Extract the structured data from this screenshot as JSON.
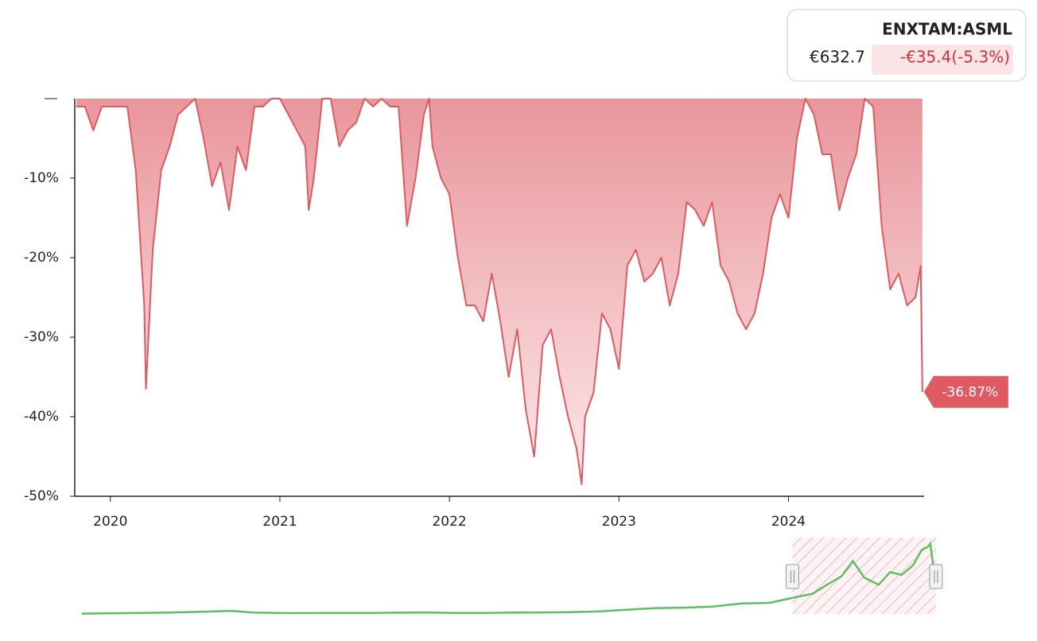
{
  "chart_data": {
    "type": "area",
    "legend": {
      "title": "ENXTAM:ASML",
      "price": "€632.7",
      "change": "-€35.4(-5.3%)"
    },
    "x": [
      2019.8,
      2019.85,
      2019.9,
      2019.95,
      2020.0,
      2020.05,
      2020.1,
      2020.15,
      2020.2,
      2020.21,
      2020.25,
      2020.3,
      2020.35,
      2020.4,
      2020.45,
      2020.5,
      2020.55,
      2020.6,
      2020.65,
      2020.7,
      2020.75,
      2020.8,
      2020.85,
      2020.9,
      2020.95,
      2021.0,
      2021.05,
      2021.1,
      2021.15,
      2021.17,
      2021.2,
      2021.25,
      2021.3,
      2021.35,
      2021.4,
      2021.45,
      2021.5,
      2021.55,
      2021.6,
      2021.65,
      2021.7,
      2021.75,
      2021.8,
      2021.85,
      2021.88,
      2021.9,
      2021.95,
      2022.0,
      2022.05,
      2022.1,
      2022.15,
      2022.2,
      2022.25,
      2022.3,
      2022.35,
      2022.4,
      2022.45,
      2022.5,
      2022.55,
      2022.6,
      2022.65,
      2022.7,
      2022.75,
      2022.78,
      2022.8,
      2022.85,
      2022.9,
      2022.95,
      2023.0,
      2023.05,
      2023.1,
      2023.15,
      2023.2,
      2023.25,
      2023.3,
      2023.35,
      2023.4,
      2023.45,
      2023.5,
      2023.55,
      2023.6,
      2023.65,
      2023.7,
      2023.75,
      2023.8,
      2023.85,
      2023.9,
      2023.95,
      2024.0,
      2024.05,
      2024.1,
      2024.15,
      2024.2,
      2024.25,
      2024.3,
      2024.35,
      2024.4,
      2024.45,
      2024.5,
      2024.55,
      2024.6,
      2024.65,
      2024.7,
      2024.75,
      2024.78,
      2024.79
    ],
    "series": [
      {
        "color": "#e05a62",
        "values": [
          -1,
          -1,
          -4,
          -1,
          -1,
          -1,
          -1,
          -9,
          -26,
          -36.5,
          -19,
          -9,
          -6,
          -2,
          -1,
          0,
          -5,
          -11,
          -8,
          -14,
          -6,
          -9,
          -1,
          -1,
          0,
          0,
          -2,
          -4,
          -6,
          -14,
          -10,
          0,
          0,
          -6,
          -4,
          -3,
          0,
          -1,
          0,
          -1,
          -1,
          -16,
          -10,
          -2,
          0,
          -6,
          -10,
          -12,
          -20,
          -26,
          -26,
          -28,
          -22,
          -28,
          -35,
          -29,
          -39,
          -45,
          -31,
          -29,
          -35,
          -40,
          -44,
          -48.5,
          -40,
          -37,
          -27,
          -29,
          -34,
          -21,
          -19,
          -23,
          -22,
          -20,
          -26,
          -22,
          -13,
          -14,
          -16,
          -13,
          -21,
          -23,
          -27,
          -29,
          -27,
          -22,
          -15,
          -12,
          -15,
          -5,
          0,
          -2,
          -7,
          -7,
          -14,
          -10,
          -7,
          0,
          -1,
          -16,
          -24,
          -22,
          -26,
          -25,
          -21,
          -36.87
        ],
        "value_labels": [
          null,
          null,
          null,
          null,
          null,
          null,
          null,
          null,
          null,
          null,
          null,
          null,
          null,
          null,
          null,
          null,
          null,
          null,
          null,
          null,
          null,
          null,
          null,
          null,
          null,
          null,
          null,
          null,
          null,
          null,
          null,
          null,
          null,
          null,
          null,
          null,
          null,
          null,
          null,
          null,
          null,
          null,
          null,
          null,
          null,
          null,
          null,
          null,
          null,
          null,
          null,
          null,
          null,
          null,
          null,
          null,
          null,
          null,
          null,
          null,
          null,
          null,
          null,
          null,
          null,
          null,
          null,
          null,
          null,
          null,
          null,
          null,
          null,
          null,
          null,
          null,
          null,
          null,
          null,
          null,
          null,
          null,
          null,
          null,
          null,
          null,
          null,
          null,
          null,
          null,
          null,
          null,
          null,
          null,
          null,
          null,
          null,
          null,
          null,
          null,
          null,
          null,
          null,
          null,
          null,
          "-36.87%"
        ]
      }
    ],
    "xlim": [
      2019.79,
      2024.8
    ],
    "xticks": [
      2020,
      2021,
      2022,
      2023,
      2024
    ],
    "ylim": [
      -50,
      0
    ],
    "yticks": [
      {
        "value": -10,
        "label": "-10%"
      },
      {
        "value": -20,
        "label": "-20%"
      },
      {
        "value": -30,
        "label": "-30%"
      },
      {
        "value": -40,
        "label": "-40%"
      },
      {
        "value": -50,
        "label": "-50%"
      }
    ],
    "navigator": {
      "color": "#5cbf60",
      "xlim": [
        1995,
        2024.8
      ],
      "ylim": [
        0,
        1050
      ],
      "x": [
        1995,
        1996,
        1997,
        1998,
        1999,
        2000.2,
        2001,
        2002,
        2003,
        2004,
        2005,
        2006,
        2007,
        2008,
        2009,
        2010,
        2011,
        2012,
        2013,
        2014,
        2015,
        2016,
        2017,
        2018,
        2019,
        2020,
        2020.5,
        2021,
        2021.5,
        2021.9,
        2022.3,
        2022.8,
        2023.2,
        2023.6,
        2024.0,
        2024.3,
        2024.5,
        2024.6,
        2024.7,
        2024.79
      ],
      "values": [
        5,
        10,
        15,
        20,
        30,
        45,
        20,
        12,
        12,
        14,
        15,
        18,
        22,
        15,
        14,
        20,
        22,
        25,
        35,
        60,
        85,
        90,
        105,
        150,
        160,
        250,
        290,
        420,
        540,
        760,
        520,
        420,
        600,
        560,
        700,
        920,
        960,
        1010,
        700,
        630
      ]
    }
  }
}
